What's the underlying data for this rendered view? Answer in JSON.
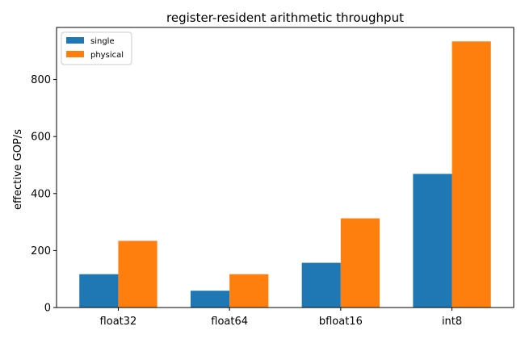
{
  "chart_data": {
    "type": "bar",
    "title": "register-resident arithmetic throughput",
    "xlabel": "",
    "ylabel": "effective GOP/s",
    "categories": [
      "float32",
      "float64",
      "bfloat16",
      "int8"
    ],
    "series": [
      {
        "name": "single",
        "color": "#1f77b4",
        "values": [
          117,
          59,
          157,
          469
        ]
      },
      {
        "name": "physical",
        "color": "#ff7f0e",
        "values": [
          234,
          117,
          313,
          934
        ]
      }
    ],
    "ylim": [
      0,
      983
    ],
    "yticks": [
      0,
      200,
      400,
      600,
      800
    ],
    "legend_position": "top-left",
    "grid": false
  }
}
